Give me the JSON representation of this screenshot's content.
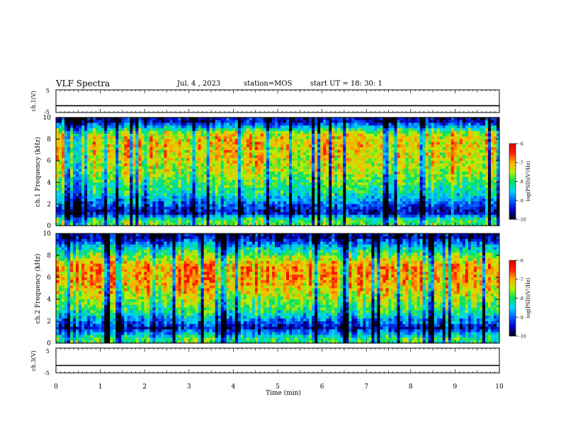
{
  "header": {
    "title": "VLF Spectra",
    "date": "Jul. 4 , 2023",
    "station": "station=MOS",
    "start": "start UT = 18: 30: 1"
  },
  "chart_data": [
    {
      "type": "line",
      "title": "",
      "ylabel": "ch.1(V)",
      "ylim": [
        -5,
        5
      ],
      "yticks": [
        "5",
        "-5"
      ],
      "series": [
        {
          "values": [
            -2.0
          ]
        }
      ]
    },
    {
      "type": "heatmap",
      "ylabel": "ch.1 Frequency (kHz)",
      "ylim": [
        0,
        10
      ],
      "yticks": [
        "0",
        "2",
        "4",
        "6",
        "8",
        "10"
      ],
      "xlim": [
        0,
        10
      ],
      "colorbar": {
        "label": "log(PSD)(V²/Hz)",
        "range": [
          -10,
          -6
        ],
        "ticks": [
          "-6",
          "-7",
          "-8",
          "-9",
          "-10"
        ]
      },
      "band_profile_log_psd": [
        {
          "freq_khz": 0.5,
          "value": -7.8
        },
        {
          "freq_khz": 1.2,
          "value": -9.5
        },
        {
          "freq_khz": 3.0,
          "value": -8.2
        },
        {
          "freq_khz": 5.0,
          "value": -7.4
        },
        {
          "freq_khz": 7.5,
          "value": -7.1
        },
        {
          "freq_khz": 8.5,
          "value": -7.3
        },
        {
          "freq_khz": 9.6,
          "value": -9.4
        }
      ]
    },
    {
      "type": "heatmap",
      "ylabel": "ch.2 Frequency (kHz)",
      "ylim": [
        0,
        10
      ],
      "yticks": [
        "0",
        "2",
        "4",
        "6",
        "8",
        "10"
      ],
      "xlim": [
        0,
        10
      ],
      "colorbar": {
        "label": "log(PSD)(V²/Hz)",
        "range": [
          -10,
          -6
        ],
        "ticks": [
          "-6",
          "-7",
          "-8",
          "-9",
          "-10"
        ]
      },
      "band_profile_log_psd": [
        {
          "freq_khz": 0.4,
          "value": -8.0
        },
        {
          "freq_khz": 1.4,
          "value": -9.5
        },
        {
          "freq_khz": 3.0,
          "value": -8.0
        },
        {
          "freq_khz": 5.5,
          "value": -7.0
        },
        {
          "freq_khz": 7.0,
          "value": -6.9
        },
        {
          "freq_khz": 8.6,
          "value": -8.3
        },
        {
          "freq_khz": 9.6,
          "value": -9.6
        }
      ]
    },
    {
      "type": "line",
      "ylabel": "ch.3(V)",
      "ylim": [
        -5,
        5
      ],
      "yticks": [
        "5",
        "-5"
      ],
      "series": [
        {
          "values": [
            -2.0
          ]
        }
      ]
    }
  ],
  "xaxis": {
    "label": "Time (min)",
    "range": [
      0,
      10
    ],
    "ticks": [
      "0",
      "1",
      "2",
      "3",
      "4",
      "5",
      "6",
      "7",
      "8",
      "9",
      "10"
    ]
  },
  "colors": {
    "colormap": [
      "#000000",
      "#0000c8",
      "#0060ff",
      "#00d8ff",
      "#00e060",
      "#b8f000",
      "#ffb000",
      "#ff2000",
      "#e00000",
      "#ffffff"
    ]
  }
}
